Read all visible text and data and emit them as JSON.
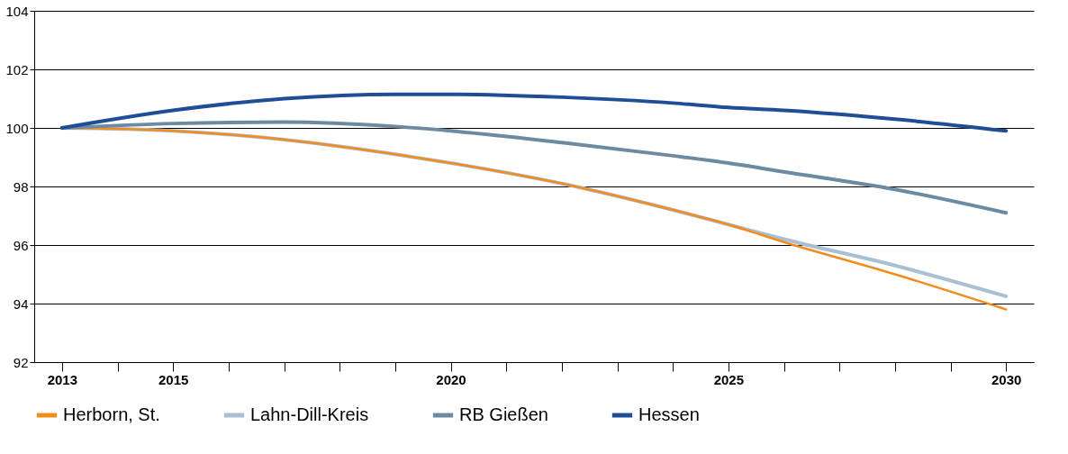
{
  "chart_data": {
    "type": "line",
    "x": [
      2013,
      2015,
      2017,
      2019,
      2020,
      2022,
      2024,
      2025,
      2026,
      2028,
      2030
    ],
    "series": [
      {
        "name": "Herborn, St.",
        "color": "#f28c1c",
        "values": [
          100,
          99.9,
          99.6,
          99.1,
          98.8,
          98.1,
          97.2,
          96.7,
          96.1,
          95.0,
          93.8
        ]
      },
      {
        "name": "Lahn-Dill-Kreis",
        "color": "#a9bfd2",
        "values": [
          100,
          99.9,
          99.6,
          99.1,
          98.8,
          98.1,
          97.2,
          96.7,
          96.2,
          95.3,
          94.25
        ]
      },
      {
        "name": "RB Gießen",
        "color": "#6d8aa3",
        "values": [
          100,
          100.15,
          100.2,
          100.05,
          99.9,
          99.5,
          99.05,
          98.8,
          98.5,
          97.9,
          97.1
        ]
      },
      {
        "name": "Hessen",
        "color": "#1f4e96",
        "values": [
          100,
          100.6,
          101.0,
          101.15,
          101.15,
          101.05,
          100.85,
          100.7,
          100.6,
          100.3,
          99.9
        ]
      }
    ],
    "xlim": [
      2012.5,
      2030.5
    ],
    "xticks": [
      2013,
      {
        "value": 2014,
        "label": null
      },
      2015,
      {
        "value": 2016,
        "label": null
      },
      {
        "value": 2017,
        "label": null
      },
      {
        "value": 2018,
        "label": null
      },
      {
        "value": 2019,
        "label": null
      },
      2020,
      {
        "value": 2021,
        "label": null
      },
      {
        "value": 2022,
        "label": null
      },
      {
        "value": 2023,
        "label": null
      },
      {
        "value": 2024,
        "label": null
      },
      2025,
      {
        "value": 2026,
        "label": null
      },
      {
        "value": 2027,
        "label": null
      },
      {
        "value": 2028,
        "label": null
      },
      {
        "value": 2029,
        "label": null
      },
      2030
    ],
    "ylim": [
      92,
      104
    ],
    "yticks": [
      92,
      94,
      96,
      98,
      100,
      102,
      104
    ],
    "grid": "y",
    "legend": "bottom",
    "marker": "none",
    "line_style": "solid"
  }
}
